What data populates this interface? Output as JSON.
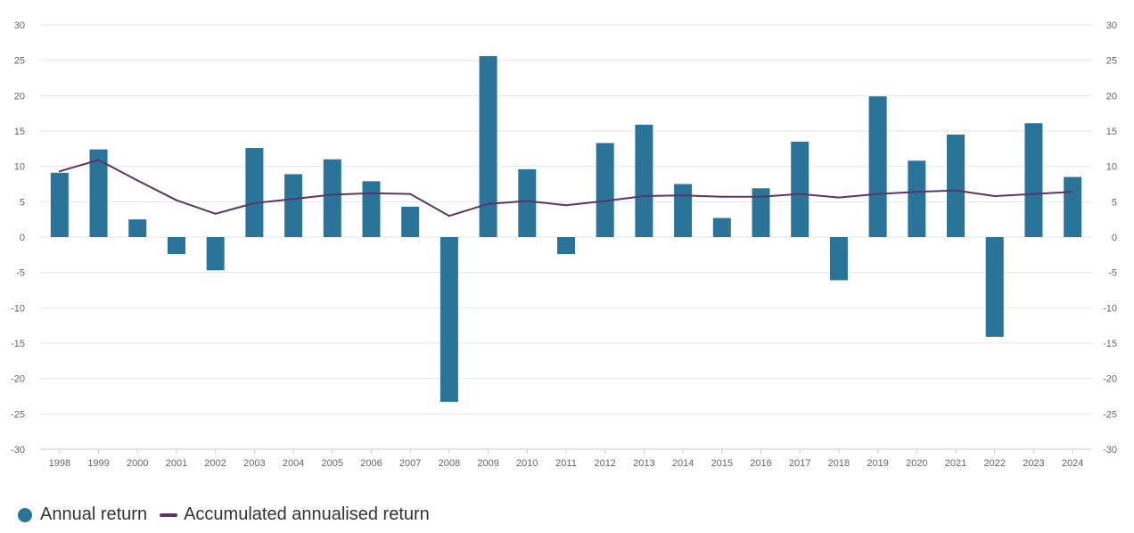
{
  "chart_data": {
    "type": "bar",
    "categories": [
      "1998",
      "1999",
      "2000",
      "2001",
      "2002",
      "2003",
      "2004",
      "2005",
      "2006",
      "2007",
      "2008",
      "2009",
      "2010",
      "2011",
      "2012",
      "2013",
      "2014",
      "2015",
      "2016",
      "2017",
      "2018",
      "2019",
      "2020",
      "2021",
      "2022",
      "2023",
      "2024"
    ],
    "series": [
      {
        "name": "Annual return",
        "type": "bar",
        "color": "#2a7399",
        "values": [
          9.1,
          12.4,
          2.5,
          -2.4,
          -4.7,
          12.6,
          8.9,
          11.0,
          7.9,
          4.3,
          -23.3,
          25.6,
          9.6,
          -2.4,
          13.3,
          15.9,
          7.5,
          2.7,
          6.9,
          13.5,
          -6.1,
          19.9,
          10.8,
          14.5,
          -14.1,
          16.1,
          8.5
        ]
      },
      {
        "name": "Accumulated annualised return",
        "type": "line",
        "color": "#5c3566",
        "values": [
          9.3,
          10.9,
          8.0,
          5.2,
          3.3,
          4.8,
          5.4,
          6.0,
          6.2,
          6.1,
          3.0,
          4.7,
          5.1,
          4.5,
          5.1,
          5.8,
          5.9,
          5.7,
          5.7,
          6.1,
          5.6,
          6.1,
          6.4,
          6.6,
          5.8,
          6.1,
          6.4
        ]
      }
    ],
    "yticks": [
      30,
      25,
      20,
      15,
      10,
      5,
      0,
      -5,
      -10,
      -15,
      -20,
      -25,
      -30
    ],
    "ylim": [
      -30,
      30
    ],
    "grid": true,
    "legend_position": "bottom-left"
  }
}
